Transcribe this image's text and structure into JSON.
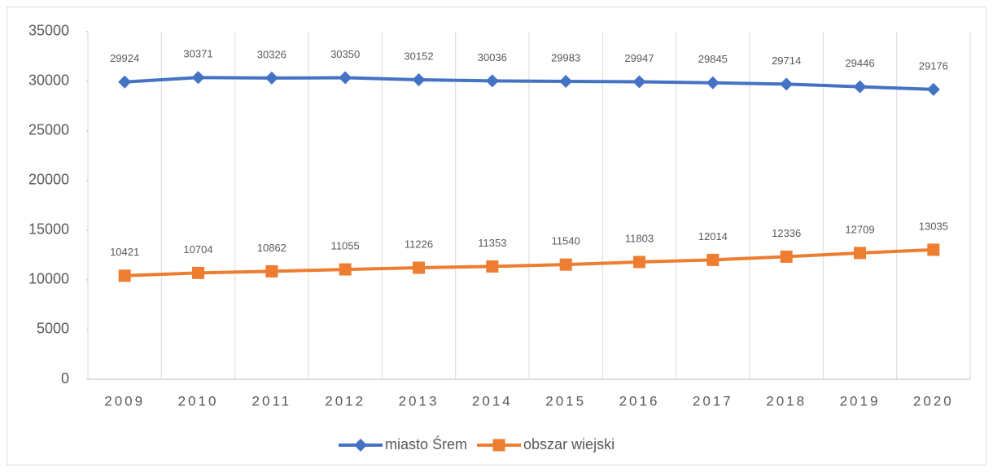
{
  "chart_data": {
    "type": "line",
    "categories": [
      "2009",
      "2010",
      "2011",
      "2012",
      "2013",
      "2014",
      "2015",
      "2016",
      "2017",
      "2018",
      "2019",
      "2020"
    ],
    "series": [
      {
        "name": "miasto Śrem",
        "color": "#4472c4",
        "marker": "diamond",
        "values": [
          29924,
          30371,
          30326,
          30350,
          30152,
          30036,
          29983,
          29947,
          29845,
          29714,
          29446,
          29176
        ]
      },
      {
        "name": "obszar wiejski",
        "color": "#ed7d31",
        "marker": "square",
        "values": [
          10421,
          10704,
          10862,
          11055,
          11226,
          11353,
          11540,
          11803,
          12014,
          12336,
          12709,
          13035
        ]
      }
    ],
    "ylim": [
      0,
      35000
    ],
    "yticks": [
      0,
      5000,
      10000,
      15000,
      20000,
      25000,
      30000,
      35000
    ],
    "data_labels": true,
    "legend": "bottom"
  }
}
